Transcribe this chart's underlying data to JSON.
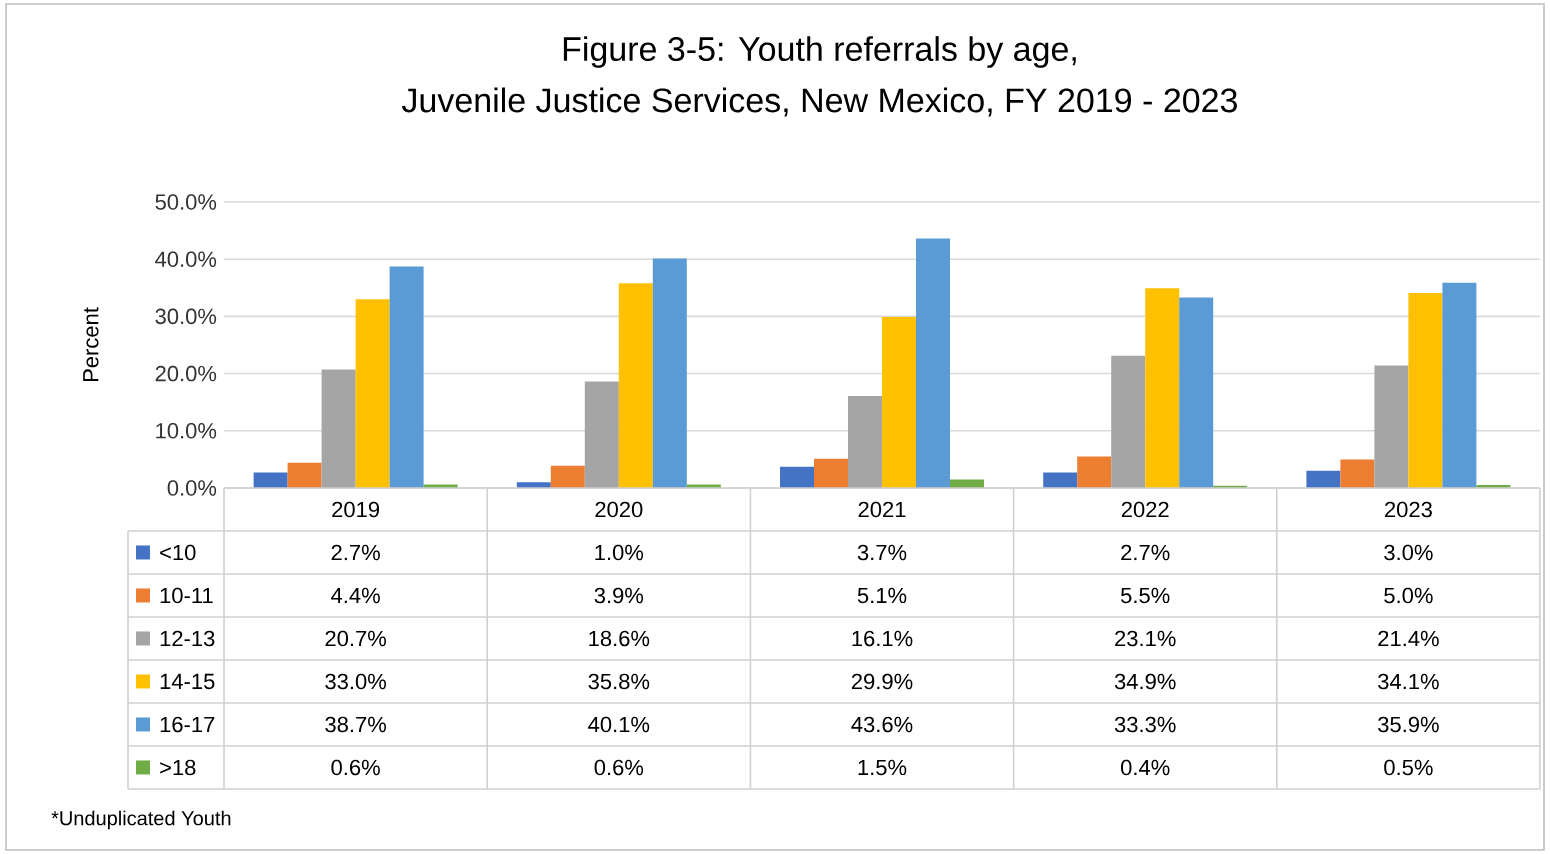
{
  "chart_data": {
    "type": "bar",
    "title": "Figure 3-5: Youth referrals by age,",
    "subtitle": "Juvenile Justice Services, New Mexico, FY 2019 - 2023",
    "ylabel": "Percent",
    "categories": [
      "2019",
      "2020",
      "2021",
      "2022",
      "2023"
    ],
    "series": [
      {
        "name": "<10",
        "color": "#4472c4",
        "values": [
          2.7,
          1.0,
          3.7,
          2.7,
          3.0
        ],
        "value_labels": [
          "2.7%",
          "1.0%",
          "3.7%",
          "2.7%",
          "3.0%"
        ]
      },
      {
        "name": "10-11",
        "color": "#ed7d31",
        "values": [
          4.4,
          3.9,
          5.1,
          5.5,
          5.0
        ],
        "value_labels": [
          "4.4%",
          "3.9%",
          "5.1%",
          "5.5%",
          "5.0%"
        ]
      },
      {
        "name": "12-13",
        "color": "#a5a5a5",
        "values": [
          20.7,
          18.6,
          16.1,
          23.1,
          21.4
        ],
        "value_labels": [
          "20.7%",
          "18.6%",
          "16.1%",
          "23.1%",
          "21.4%"
        ]
      },
      {
        "name": "14-15",
        "color": "#ffc000",
        "values": [
          33.0,
          35.8,
          29.9,
          34.9,
          34.1
        ],
        "value_labels": [
          "33.0%",
          "35.8%",
          "29.9%",
          "34.9%",
          "34.1%"
        ]
      },
      {
        "name": "16-17",
        "color": "#5b9bd5",
        "values": [
          38.7,
          40.1,
          43.6,
          33.3,
          35.9
        ],
        "value_labels": [
          "38.7%",
          "40.1%",
          "43.6%",
          "33.3%",
          "35.9%"
        ]
      },
      {
        "name": ">18",
        "color": "#70ad47",
        "values": [
          0.6,
          0.6,
          1.5,
          0.4,
          0.5
        ],
        "value_labels": [
          "0.6%",
          "0.6%",
          "1.5%",
          "0.4%",
          "0.5%"
        ]
      }
    ],
    "ylim": [
      0,
      50
    ],
    "yticks": [
      {
        "value": 0,
        "label": "0.0%"
      },
      {
        "value": 10,
        "label": "10.0%"
      },
      {
        "value": 20,
        "label": "20.0%"
      },
      {
        "value": 30,
        "label": "30.0%"
      },
      {
        "value": 40,
        "label": "40.0%"
      },
      {
        "value": 50,
        "label": "50.0%"
      }
    ],
    "grid": "y",
    "legend": "bottom",
    "annotations": [
      "*Unduplicated Youth"
    ]
  }
}
